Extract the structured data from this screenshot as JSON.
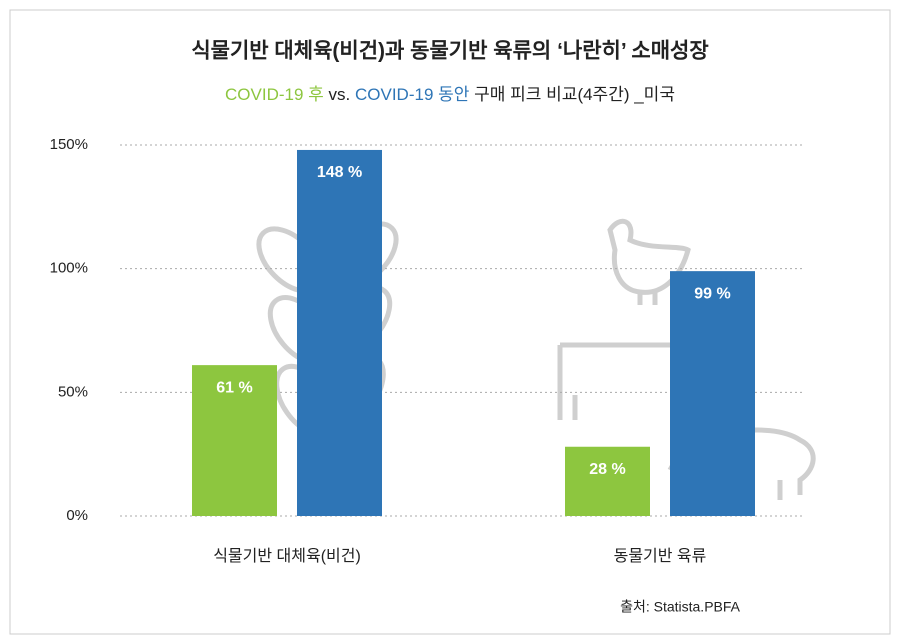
{
  "chart_data": {
    "type": "bar",
    "title": "식물기반 대체육(비건)과 동물기반 육류의 ‘나란히’ 소매성장",
    "legend_separator": "vs.",
    "subtitle": "구매 피크 비교(4주간) _미국",
    "categories": [
      "식물기반 대체육(비건)",
      "동물기반 육류"
    ],
    "series": [
      {
        "name": "COVID-19 후",
        "color": "#8dc63f",
        "values": [
          61,
          28
        ],
        "value_labels": [
          "61 %",
          "28 %"
        ]
      },
      {
        "name": "COVID-19 동안",
        "color": "#2e75b6",
        "values": [
          148,
          99
        ],
        "value_labels": [
          "148 %",
          "99 %"
        ]
      }
    ],
    "ylim": [
      0,
      150
    ],
    "yticks": [
      {
        "value": 0,
        "label": "0%"
      },
      {
        "value": 50,
        "label": "50%"
      },
      {
        "value": 100,
        "label": "100%"
      },
      {
        "value": 150,
        "label": "150%"
      }
    ],
    "grid": true,
    "source": "출처: Statista.PBFA"
  }
}
